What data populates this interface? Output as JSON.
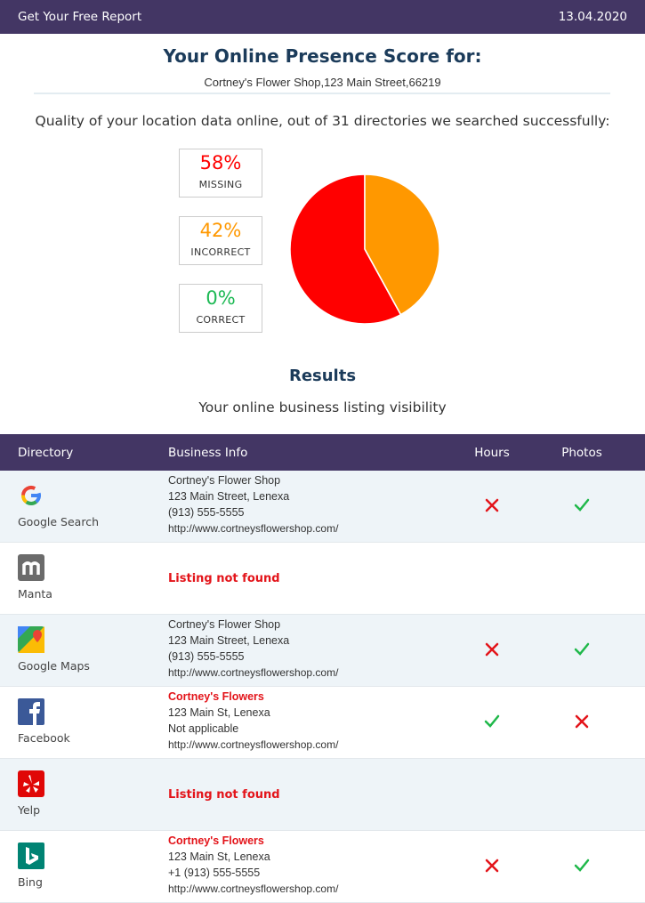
{
  "header": {
    "title": "Get Your Free Report",
    "date": "13.04.2020"
  },
  "score": {
    "title": "Your Online Presence Score for:",
    "business": "Cortney's Flower Shop,123 Main Street,66219",
    "description": "Quality of your location data online, out of 31 directories we searched successfully:"
  },
  "chart_data": {
    "type": "pie",
    "categories": [
      "MISSING",
      "INCORRECT",
      "CORRECT"
    ],
    "values": [
      58,
      42,
      0
    ],
    "value_labels": [
      "58%",
      "42%",
      "0%"
    ],
    "colors": [
      "#ff0000",
      "#ff9800",
      "#1db954"
    ]
  },
  "results": {
    "title": "Results",
    "subtitle": "Your online business listing visibility"
  },
  "table": {
    "columns": [
      "Directory",
      "Business Info",
      "Hours",
      "Photos"
    ],
    "rows": [
      {
        "directory": "Google Search",
        "info": [
          "Cortney's Flower Shop",
          "123 Main Street, Lenexa",
          "(913) 555-5555",
          "http://www.cortneysflowershop.com/"
        ],
        "name_mismatch": false,
        "hours": false,
        "photos": true
      },
      {
        "directory": "Manta",
        "not_found": "Listing not found"
      },
      {
        "directory": "Google Maps",
        "info": [
          "Cortney's Flower Shop",
          "123 Main Street, Lenexa",
          "(913) 555-5555",
          "http://www.cortneysflowershop.com/"
        ],
        "name_mismatch": false,
        "hours": false,
        "photos": true
      },
      {
        "directory": "Facebook",
        "info": [
          "Cortney's Flowers",
          "123 Main St, Lenexa",
          "Not applicable",
          "http://www.cortneysflowershop.com/"
        ],
        "name_mismatch": true,
        "hours": true,
        "photos": false
      },
      {
        "directory": "Yelp",
        "not_found": "Listing not found"
      },
      {
        "directory": "Bing",
        "info": [
          "Cortney's Flowers",
          "123 Main St, Lenexa",
          "+1 (913) 555-5555",
          "http://www.cortneysflowershop.com/"
        ],
        "name_mismatch": true,
        "hours": false,
        "photos": true
      }
    ]
  }
}
